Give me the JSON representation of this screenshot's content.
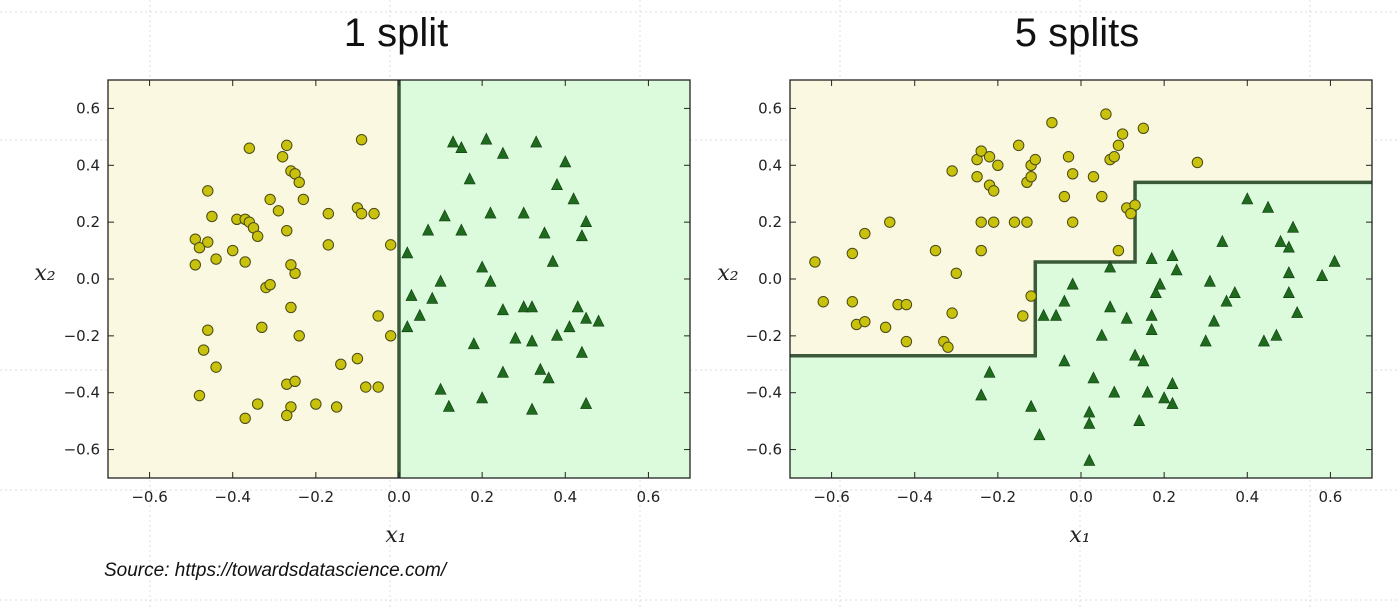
{
  "source_note": "Source: https://towardsdatascience.com/",
  "colors": {
    "class_a_region": "#fbf8e2",
    "class_b_region": "#dcfadc",
    "class_a_marker": "#c8c20c",
    "class_b_marker": "#1e6b1e",
    "boundary": "#3a5a3a",
    "page_grid": "#dcdcdc"
  },
  "chart_data": [
    {
      "type": "scatter",
      "title": "1 split",
      "xlabel": "x₁",
      "ylabel": "x₂",
      "xlim": [
        -0.7,
        0.7
      ],
      "ylim": [
        -0.7,
        0.7
      ],
      "xticks": [
        -0.6,
        -0.4,
        -0.2,
        0.0,
        0.2,
        0.4,
        0.6
      ],
      "yticks": [
        -0.6,
        -0.4,
        -0.2,
        0.0,
        0.2,
        0.4,
        0.6
      ],
      "xtick_labels": [
        "−0.6",
        "−0.4",
        "−0.2",
        "0.0",
        "0.2",
        "0.4",
        "0.6"
      ],
      "ytick_labels": [
        "−0.6",
        "−0.4",
        "−0.2",
        "0.0",
        "0.2",
        "0.4",
        "0.6"
      ],
      "grid": false,
      "decision_boundary": [
        [
          0.0,
          0.7
        ],
        [
          0.0,
          -0.7
        ]
      ],
      "region_a_polygon": [
        [
          -0.7,
          0.7
        ],
        [
          0.0,
          0.7
        ],
        [
          0.0,
          -0.7
        ],
        [
          -0.7,
          -0.7
        ]
      ],
      "series": [
        {
          "marker": "circle",
          "points": [
            [
              -0.49,
              0.14
            ],
            [
              -0.48,
              0.11
            ],
            [
              -0.46,
              0.13
            ],
            [
              -0.49,
              0.05
            ],
            [
              -0.44,
              0.07
            ],
            [
              -0.45,
              0.22
            ],
            [
              -0.46,
              0.31
            ],
            [
              -0.4,
              0.1
            ],
            [
              -0.39,
              0.21
            ],
            [
              -0.37,
              0.21
            ],
            [
              -0.36,
              0.2
            ],
            [
              -0.35,
              0.18
            ],
            [
              -0.34,
              0.15
            ],
            [
              -0.37,
              0.06
            ],
            [
              -0.36,
              0.46
            ],
            [
              -0.29,
              0.24
            ],
            [
              -0.28,
              0.43
            ],
            [
              -0.27,
              0.47
            ],
            [
              -0.26,
              0.38
            ],
            [
              -0.25,
              0.37
            ],
            [
              -0.24,
              0.34
            ],
            [
              -0.23,
              0.28
            ],
            [
              -0.27,
              0.17
            ],
            [
              -0.25,
              0.02
            ],
            [
              -0.26,
              0.05
            ],
            [
              -0.31,
              0.28
            ],
            [
              -0.32,
              -0.03
            ],
            [
              -0.31,
              -0.02
            ],
            [
              -0.17,
              0.23
            ],
            [
              -0.17,
              0.12
            ],
            [
              -0.1,
              0.25
            ],
            [
              -0.09,
              0.49
            ],
            [
              -0.09,
              0.23
            ],
            [
              -0.06,
              0.23
            ],
            [
              -0.02,
              0.12
            ],
            [
              -0.05,
              -0.13
            ],
            [
              -0.02,
              -0.2
            ],
            [
              -0.33,
              -0.17
            ],
            [
              -0.26,
              -0.1
            ],
            [
              -0.24,
              -0.2
            ],
            [
              -0.46,
              -0.18
            ],
            [
              -0.47,
              -0.25
            ],
            [
              -0.44,
              -0.31
            ],
            [
              -0.48,
              -0.41
            ],
            [
              -0.14,
              -0.3
            ],
            [
              -0.1,
              -0.28
            ],
            [
              -0.08,
              -0.38
            ],
            [
              -0.05,
              -0.38
            ],
            [
              -0.34,
              -0.44
            ],
            [
              -0.37,
              -0.49
            ],
            [
              -0.27,
              -0.37
            ],
            [
              -0.25,
              -0.36
            ],
            [
              -0.26,
              -0.45
            ],
            [
              -0.27,
              -0.48
            ],
            [
              -0.2,
              -0.44
            ],
            [
              -0.15,
              -0.45
            ]
          ]
        },
        {
          "marker": "triangle",
          "points": [
            [
              0.02,
              0.09
            ],
            [
              0.03,
              -0.06
            ],
            [
              0.07,
              0.17
            ],
            [
              0.11,
              0.22
            ],
            [
              0.15,
              0.17
            ],
            [
              0.1,
              -0.01
            ],
            [
              0.08,
              -0.07
            ],
            [
              0.05,
              -0.13
            ],
            [
              0.02,
              -0.17
            ],
            [
              0.13,
              0.48
            ],
            [
              0.15,
              0.46
            ],
            [
              0.17,
              0.35
            ],
            [
              0.21,
              0.49
            ],
            [
              0.25,
              0.44
            ],
            [
              0.22,
              0.23
            ],
            [
              0.2,
              0.04
            ],
            [
              0.22,
              -0.01
            ],
            [
              0.25,
              -0.11
            ],
            [
              0.3,
              -0.1
            ],
            [
              0.32,
              -0.1
            ],
            [
              0.28,
              -0.21
            ],
            [
              0.32,
              -0.22
            ],
            [
              0.18,
              -0.23
            ],
            [
              0.1,
              -0.39
            ],
            [
              0.12,
              -0.45
            ],
            [
              0.2,
              -0.42
            ],
            [
              0.25,
              -0.33
            ],
            [
              0.32,
              -0.46
            ],
            [
              0.3,
              0.23
            ],
            [
              0.35,
              0.16
            ],
            [
              0.37,
              0.06
            ],
            [
              0.33,
              0.48
            ],
            [
              0.38,
              0.33
            ],
            [
              0.4,
              0.41
            ],
            [
              0.42,
              0.28
            ],
            [
              0.45,
              0.2
            ],
            [
              0.44,
              0.15
            ],
            [
              0.43,
              -0.1
            ],
            [
              0.45,
              -0.14
            ],
            [
              0.41,
              -0.17
            ],
            [
              0.38,
              -0.2
            ],
            [
              0.44,
              -0.26
            ],
            [
              0.48,
              -0.15
            ],
            [
              0.34,
              -0.32
            ],
            [
              0.36,
              -0.35
            ],
            [
              0.45,
              -0.44
            ]
          ]
        }
      ]
    },
    {
      "type": "scatter",
      "title": "5 splits",
      "xlabel": "x₁",
      "ylabel": "x₂",
      "xlim": [
        -0.7,
        0.7
      ],
      "ylim": [
        -0.7,
        0.7
      ],
      "xticks": [
        -0.6,
        -0.4,
        -0.2,
        0.0,
        0.2,
        0.4,
        0.6
      ],
      "yticks": [
        -0.6,
        -0.4,
        -0.2,
        0.0,
        0.2,
        0.4,
        0.6
      ],
      "xtick_labels": [
        "−0.6",
        "−0.4",
        "−0.2",
        "0.0",
        "0.2",
        "0.4",
        "0.6"
      ],
      "ytick_labels": [
        "−0.6",
        "−0.4",
        "−0.2",
        "0.0",
        "0.2",
        "0.4",
        "0.6"
      ],
      "grid": false,
      "decision_boundary": [
        [
          -0.7,
          -0.27
        ],
        [
          -0.11,
          -0.27
        ],
        [
          -0.11,
          0.06
        ],
        [
          0.13,
          0.06
        ],
        [
          0.13,
          0.34
        ],
        [
          0.7,
          0.34
        ]
      ],
      "region_a_polygon": [
        [
          -0.7,
          0.7
        ],
        [
          0.7,
          0.7
        ],
        [
          0.7,
          0.34
        ],
        [
          0.13,
          0.34
        ],
        [
          0.13,
          0.06
        ],
        [
          -0.11,
          0.06
        ],
        [
          -0.11,
          -0.27
        ],
        [
          -0.7,
          -0.27
        ]
      ],
      "series": [
        {
          "marker": "circle",
          "points": [
            [
              -0.64,
              0.06
            ],
            [
              -0.62,
              -0.08
            ],
            [
              -0.55,
              -0.08
            ],
            [
              -0.54,
              -0.16
            ],
            [
              -0.52,
              -0.15
            ],
            [
              -0.52,
              0.16
            ],
            [
              -0.55,
              0.09
            ],
            [
              -0.46,
              0.2
            ],
            [
              -0.47,
              -0.17
            ],
            [
              -0.44,
              -0.09
            ],
            [
              -0.42,
              -0.09
            ],
            [
              -0.42,
              -0.22
            ],
            [
              -0.35,
              0.1
            ],
            [
              -0.33,
              -0.22
            ],
            [
              -0.32,
              -0.24
            ],
            [
              -0.31,
              -0.12
            ],
            [
              -0.3,
              0.02
            ],
            [
              -0.31,
              0.38
            ],
            [
              -0.25,
              0.42
            ],
            [
              -0.24,
              0.45
            ],
            [
              -0.22,
              0.43
            ],
            [
              -0.2,
              0.4
            ],
            [
              -0.25,
              0.36
            ],
            [
              -0.22,
              0.33
            ],
            [
              -0.21,
              0.31
            ],
            [
              -0.24,
              0.2
            ],
            [
              -0.21,
              0.2
            ],
            [
              -0.24,
              0.1
            ],
            [
              -0.15,
              0.47
            ],
            [
              -0.12,
              0.4
            ],
            [
              -0.11,
              0.42
            ],
            [
              -0.13,
              0.34
            ],
            [
              -0.12,
              0.36
            ],
            [
              -0.16,
              0.2
            ],
            [
              -0.13,
              0.2
            ],
            [
              -0.14,
              -0.13
            ],
            [
              -0.12,
              -0.06
            ],
            [
              -0.07,
              0.55
            ],
            [
              -0.04,
              0.29
            ],
            [
              -0.02,
              0.37
            ],
            [
              -0.03,
              0.43
            ],
            [
              -0.02,
              0.2
            ],
            [
              0.05,
              0.29
            ],
            [
              0.07,
              0.42
            ],
            [
              0.08,
              0.43
            ],
            [
              0.09,
              0.47
            ],
            [
              0.1,
              0.51
            ],
            [
              0.06,
              0.58
            ],
            [
              0.15,
              0.53
            ],
            [
              0.11,
              0.25
            ],
            [
              0.13,
              0.26
            ],
            [
              0.12,
              0.23
            ],
            [
              0.09,
              0.1
            ],
            [
              0.28,
              0.41
            ],
            [
              0.03,
              0.36
            ]
          ]
        },
        {
          "marker": "triangle",
          "points": [
            [
              -0.24,
              -0.41
            ],
            [
              -0.22,
              -0.33
            ],
            [
              -0.12,
              -0.45
            ],
            [
              -0.1,
              -0.55
            ],
            [
              -0.09,
              -0.13
            ],
            [
              -0.06,
              -0.13
            ],
            [
              -0.04,
              -0.08
            ],
            [
              -0.02,
              -0.02
            ],
            [
              -0.04,
              -0.29
            ],
            [
              0.02,
              -0.47
            ],
            [
              0.02,
              -0.51
            ],
            [
              0.02,
              -0.64
            ],
            [
              0.03,
              -0.35
            ],
            [
              0.05,
              -0.2
            ],
            [
              0.07,
              -0.1
            ],
            [
              0.07,
              0.04
            ],
            [
              0.08,
              -0.4
            ],
            [
              0.11,
              -0.14
            ],
            [
              0.13,
              -0.27
            ],
            [
              0.15,
              -0.29
            ],
            [
              0.17,
              -0.18
            ],
            [
              0.17,
              -0.13
            ],
            [
              0.18,
              -0.05
            ],
            [
              0.14,
              -0.5
            ],
            [
              0.16,
              -0.4
            ],
            [
              0.2,
              -0.42
            ],
            [
              0.22,
              -0.44
            ],
            [
              0.22,
              -0.37
            ],
            [
              0.19,
              -0.02
            ],
            [
              0.22,
              0.08
            ],
            [
              0.23,
              0.03
            ],
            [
              0.17,
              0.07
            ],
            [
              0.3,
              -0.22
            ],
            [
              0.32,
              -0.15
            ],
            [
              0.35,
              -0.08
            ],
            [
              0.34,
              0.13
            ],
            [
              0.31,
              -0.01
            ],
            [
              0.37,
              -0.05
            ],
            [
              0.4,
              0.28
            ],
            [
              0.45,
              0.25
            ],
            [
              0.48,
              0.13
            ],
            [
              0.51,
              0.18
            ],
            [
              0.5,
              0.11
            ],
            [
              0.5,
              0.02
            ],
            [
              0.5,
              -0.05
            ],
            [
              0.52,
              -0.12
            ],
            [
              0.44,
              -0.22
            ],
            [
              0.47,
              -0.2
            ],
            [
              0.58,
              0.01
            ],
            [
              0.61,
              0.06
            ]
          ]
        }
      ]
    }
  ]
}
